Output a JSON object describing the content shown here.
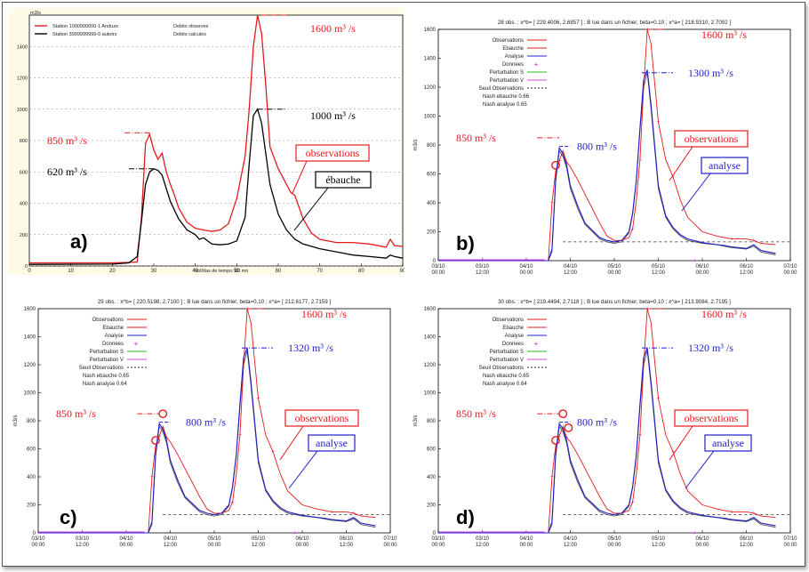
{
  "chart_data": [
    {
      "panel_label": "a)",
      "type": "line",
      "ylabel": "m3/s",
      "xlabel": "Vo0tlas de temps: 60 mn",
      "xlim": [
        0,
        90
      ],
      "ylim": [
        0,
        1600
      ],
      "xticks": [
        "0",
        "10",
        "20",
        "30",
        "40",
        "50",
        "60",
        "70",
        "80",
        "90"
      ],
      "yticks": [
        "0",
        "200",
        "400",
        "600",
        "800",
        "1000",
        "1200",
        "1400"
      ],
      "legend": {
        "position": "top-left",
        "entries": [
          {
            "name": "Station 1000000000-1   Anduze",
            "desc": "Debits observes",
            "color": "#e41a1c"
          },
          {
            "name": "Station 3999999999-0 autotrz",
            "desc": "Debits calcules",
            "color": "#000000"
          }
        ]
      },
      "series": [
        {
          "name": "Station 1000000000-1   Anduze",
          "color": "#e41a1c",
          "x": [
            0,
            20,
            26,
            27,
            28,
            29,
            30,
            31,
            32,
            33,
            34,
            35,
            36,
            38,
            40,
            42,
            44,
            46,
            48,
            50,
            52,
            53,
            54,
            55,
            56,
            57,
            58,
            60,
            62,
            63,
            64,
            66,
            68,
            70,
            74,
            78,
            82,
            86,
            87,
            88,
            90
          ],
          "y": [
            20,
            20,
            25,
            300,
            780,
            840,
            740,
            680,
            720,
            600,
            520,
            450,
            370,
            280,
            240,
            230,
            220,
            230,
            270,
            430,
            700,
            1000,
            1400,
            1600,
            1480,
            1150,
            760,
            620,
            520,
            470,
            450,
            300,
            210,
            170,
            150,
            150,
            140,
            120,
            170,
            130,
            125
          ]
        },
        {
          "name": "Station 3999999999-0 autotrz",
          "color": "#000000",
          "x": [
            0,
            20,
            24,
            26,
            27,
            28,
            29,
            30,
            31,
            32,
            34,
            36,
            38,
            40,
            41,
            42,
            44,
            46,
            48,
            50,
            52,
            53,
            54,
            55,
            56,
            58,
            60,
            62,
            64,
            66,
            70,
            74,
            78,
            82,
            86,
            87,
            88,
            90
          ],
          "y": [
            10,
            12,
            20,
            60,
            280,
            520,
            600,
            620,
            610,
            580,
            410,
            300,
            230,
            200,
            170,
            180,
            140,
            135,
            140,
            160,
            310,
            650,
            960,
            1000,
            910,
            520,
            330,
            230,
            170,
            140,
            110,
            90,
            70,
            60,
            50,
            70,
            60,
            50
          ]
        }
      ],
      "annotations": [
        "1600 m³ /s",
        "850 m³ /s",
        "620 m³ /s",
        "1000 m³ /s",
        "observations",
        "ébauche"
      ]
    },
    {
      "panel_label": "b)",
      "type": "line",
      "title": "28 obs. : x^b= [ 229.4006,   2.6857 ] ; B lue dans un fichier, beta=0.10 ; x^a= [ 218.9310,   2.7092 ]",
      "ylabel": "m3/s",
      "ylim": [
        0,
        1600
      ],
      "yticks": [
        "0",
        "200",
        "400",
        "600",
        "800",
        "1000",
        "1200",
        "1400",
        "1600"
      ],
      "xticks": [
        [
          "03/10",
          "00:00"
        ],
        [
          "03/10",
          "12:00"
        ],
        [
          "04/10",
          "00:00"
        ],
        [
          "04/10",
          "12:00"
        ],
        [
          "05/10",
          "00:00"
        ],
        [
          "05/10",
          "12:00"
        ],
        [
          "06/10",
          "00:00"
        ],
        [
          "06/10",
          "12:00"
        ],
        [
          "07/10",
          "00:00"
        ]
      ],
      "legend_entries": [
        {
          "name": "Observations",
          "color": "#e41a1c",
          "style": "solid"
        },
        {
          "name": "Ebauche",
          "color": "#e41a1c",
          "style": "solid"
        },
        {
          "name": "Analyse",
          "color": "#1f1fc8",
          "style": "solid"
        },
        {
          "name": "Donnees",
          "color": "#c020c0",
          "style": "plus"
        },
        {
          "name": "Perturbation S",
          "color": "#20c020",
          "style": "solid"
        },
        {
          "name": "Perturbation V",
          "color": "#e040e0",
          "style": "solid"
        },
        {
          "name": "Seuil Observations",
          "color": "#303030",
          "style": "dashed"
        }
      ],
      "stats": [
        "Nash ebauche  0.66",
        "Nash analyse  0.65"
      ],
      "threshold": 130,
      "annotations": [
        "1600 m³ /s",
        "1300 m³ /s",
        "850 m³ /s",
        "800 m³ /s",
        "observations",
        "analyse"
      ]
    },
    {
      "panel_label": "c)",
      "type": "line",
      "title": "29 obs. : x^b= [ 220.5198,   2.7100 ] ; B lue dans un fichier, beta=0.10 ; x^a= [ 212.6177,   2.7159 ]",
      "ylabel": "m3/s",
      "ylim": [
        0,
        1600
      ],
      "yticks": [
        "0",
        "200",
        "400",
        "600",
        "800",
        "1000",
        "1200",
        "1400",
        "1600"
      ],
      "xticks": [
        [
          "03/10",
          "00:00"
        ],
        [
          "03/10",
          "12:00"
        ],
        [
          "04/10",
          "00:00"
        ],
        [
          "04/10",
          "12:00"
        ],
        [
          "05/10",
          "00:00"
        ],
        [
          "05/10",
          "12:00"
        ],
        [
          "06/10",
          "00:00"
        ],
        [
          "06/10",
          "12:00"
        ],
        [
          "07/10",
          "00:00"
        ]
      ],
      "stats": [
        "Nash ebauche  0.65",
        "Nash analyse  0.64"
      ],
      "threshold": 130,
      "annotations": [
        "1600 m³ /s",
        "1320 m³ /s",
        "850 m³ /s",
        "800 m³ /s",
        "observations",
        "analyse"
      ]
    },
    {
      "panel_label": "d)",
      "type": "line",
      "title": "30 obs. : x^b= [ 219.4494,   2.7118 ] ; B lue dans un fichier, beta=0.10 ; x^a= [ 213.9084,   2.7195 ]",
      "ylabel": "m3/s",
      "ylim": [
        0,
        1600
      ],
      "yticks": [
        "0",
        "200",
        "400",
        "600",
        "800",
        "1000",
        "1200",
        "1400",
        "1600"
      ],
      "xticks": [
        [
          "03/10",
          "00:00"
        ],
        [
          "03/10",
          "12:00"
        ],
        [
          "04/10",
          "00:00"
        ],
        [
          "04/10",
          "12:00"
        ],
        [
          "05/10",
          "00:00"
        ],
        [
          "05/10",
          "12:00"
        ],
        [
          "06/10",
          "00:00"
        ],
        [
          "06/10",
          "12:00"
        ],
        [
          "07/10",
          "00:00"
        ]
      ],
      "stats": [
        "Nash ebauche  0.65",
        "Nash analyse  0.64"
      ],
      "threshold": 130,
      "annotations": [
        "1600 m³ /s",
        "1320 m³ /s",
        "850 m³ /s",
        "800 m³ /s",
        "observations",
        "analyse"
      ]
    }
  ],
  "time_series": {
    "t": [
      0,
      12,
      24,
      30,
      31,
      32,
      33,
      34,
      35,
      36,
      38,
      40,
      42,
      44,
      46,
      48,
      50,
      52,
      53,
      54,
      55,
      56,
      57,
      58,
      60,
      62,
      64,
      66,
      68,
      72,
      76,
      78,
      80,
      82,
      84,
      86,
      88,
      92
    ],
    "observations": [
      0,
      0,
      0,
      0,
      400,
      620,
      690,
      760,
      680,
      650,
      560,
      460,
      360,
      260,
      170,
      140,
      140,
      160,
      220,
      420,
      700,
      1200,
      1600,
      1500,
      960,
      700,
      580,
      420,
      300,
      200,
      170,
      160,
      150,
      150,
      150,
      140,
      120,
      110
    ],
    "ebauche": [
      0,
      0,
      0,
      0,
      60,
      540,
      760,
      720,
      640,
      500,
      360,
      250,
      200,
      150,
      130,
      120,
      130,
      190,
      320,
      550,
      900,
      1200,
      1300,
      1050,
      500,
      300,
      220,
      170,
      140,
      120,
      110,
      100,
      90,
      85,
      80,
      100,
      60,
      40
    ],
    "analyse": [
      0,
      0,
      0,
      0,
      80,
      560,
      780,
      740,
      660,
      520,
      380,
      260,
      210,
      160,
      140,
      130,
      140,
      200,
      330,
      560,
      920,
      1250,
      1320,
      1080,
      520,
      310,
      230,
      180,
      150,
      125,
      110,
      105,
      95,
      90,
      85,
      110,
      70,
      50
    ]
  },
  "colors": {
    "red": "#e41a1c",
    "blue": "#1f1fc8",
    "black": "#000000",
    "panel_a_bg": "#fdfbe6"
  }
}
